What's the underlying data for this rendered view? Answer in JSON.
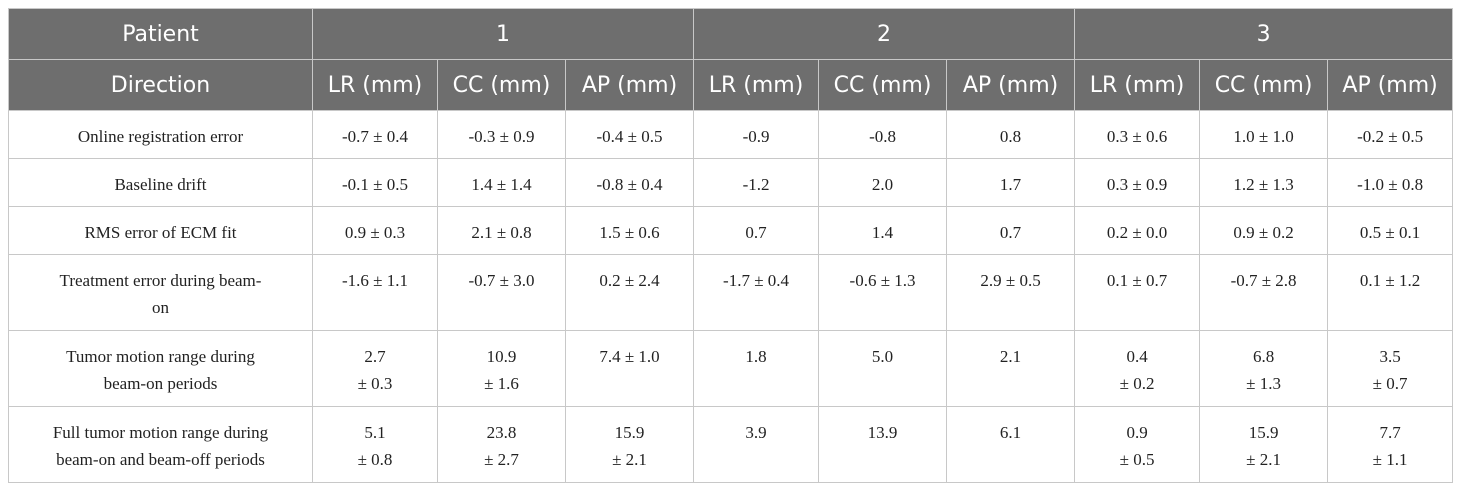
{
  "table": {
    "header_patient_label": "Patient",
    "patients": [
      "1",
      "2",
      "3"
    ],
    "header_direction_label": "Direction",
    "directions": [
      "LR (mm)",
      "CC (mm)",
      "AP (mm)",
      "LR (mm)",
      "CC (mm)",
      "AP (mm)",
      "LR (mm)",
      "CC (mm)",
      "AP (mm)"
    ],
    "rows": [
      {
        "label": "Online registration error",
        "cells": [
          "-0.7 ± 0.4",
          "-0.3 ± 0.9",
          "-0.4 ± 0.5",
          "-0.9",
          "-0.8",
          "0.8",
          "0.3 ± 0.6",
          "1.0 ± 1.0",
          "-0.2 ± 0.5"
        ]
      },
      {
        "label": "Baseline drift",
        "cells": [
          "-0.1 ± 0.5",
          "1.4 ± 1.4",
          "-0.8 ± 0.4",
          "-1.2",
          "2.0",
          "1.7",
          "0.3 ± 0.9",
          "1.2 ± 1.3",
          "-1.0 ± 0.8"
        ]
      },
      {
        "label": "RMS error of ECM fit",
        "cells": [
          "0.9 ± 0.3",
          "2.1 ± 0.8",
          "1.5 ± 0.6",
          "0.7",
          "1.4",
          "0.7",
          "0.2 ± 0.0",
          "0.9 ± 0.2",
          "0.5 ± 0.1"
        ]
      },
      {
        "label": "Treatment error during beam-\non",
        "cells": [
          "-1.6 ± 1.1",
          "-0.7 ± 3.0",
          "0.2 ± 2.4",
          "-1.7 ± 0.4",
          "-0.6 ± 1.3",
          "2.9 ± 0.5",
          "0.1 ± 0.7",
          "-0.7 ± 2.8",
          "0.1 ± 1.2"
        ]
      },
      {
        "label": "Tumor motion range during\nbeam-on periods",
        "cells": [
          "2.7\n± 0.3",
          "10.9\n± 1.6",
          "7.4 ± 1.0",
          "1.8",
          "5.0",
          "2.1",
          "0.4\n± 0.2",
          "6.8\n± 1.3",
          "3.5\n± 0.7"
        ]
      },
      {
        "label": "Full tumor motion range during\nbeam-on and beam-off periods",
        "cells": [
          "5.1\n± 0.8",
          "23.8\n± 2.7",
          "15.9\n± 2.1",
          "3.9",
          "13.9",
          "6.1",
          "0.9\n± 0.5",
          "15.9\n± 2.1",
          "7.7\n± 1.1"
        ]
      }
    ]
  }
}
